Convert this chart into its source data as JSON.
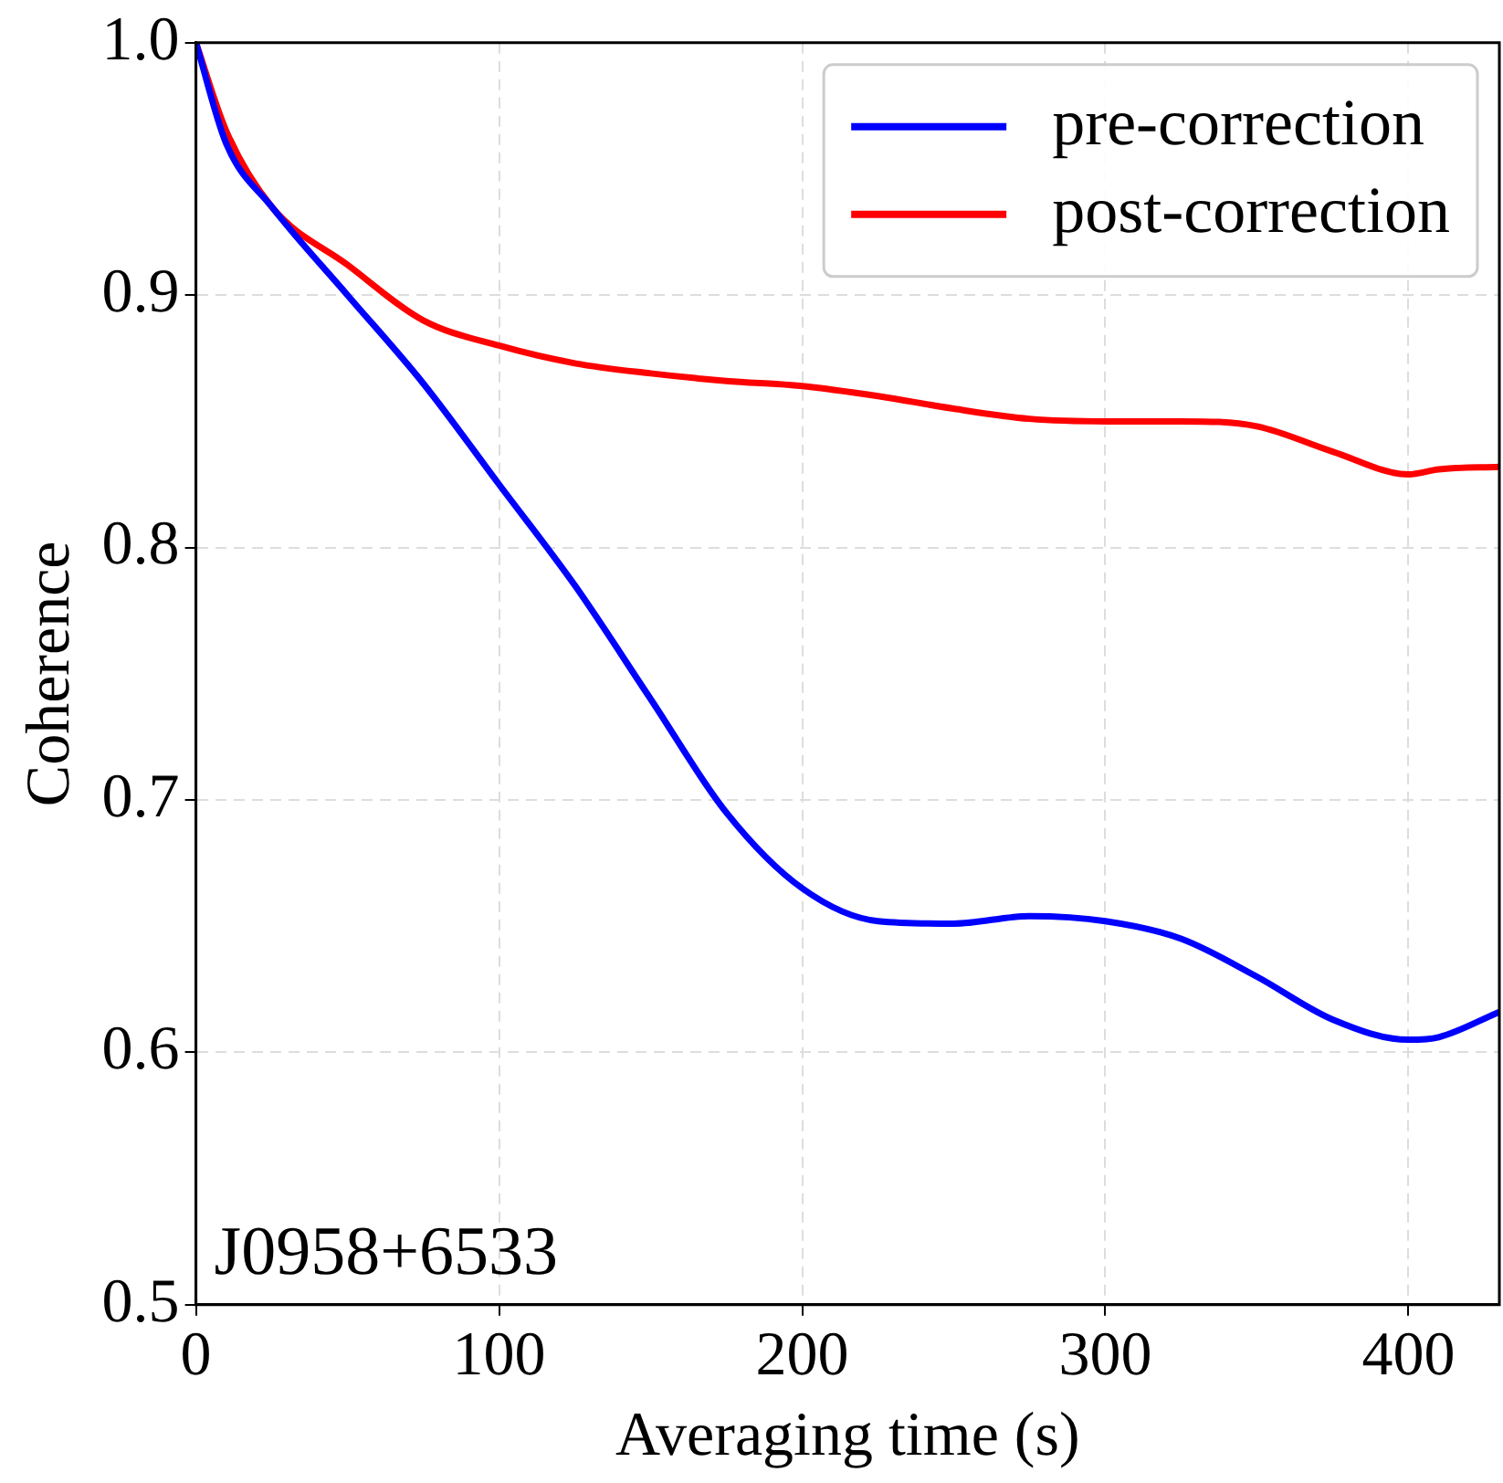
{
  "chart_data": {
    "type": "line",
    "xlabel": "Averaging time (s)",
    "ylabel": "Coherence",
    "x": [
      0,
      10,
      25,
      50,
      75,
      100,
      125,
      150,
      175,
      200,
      225,
      250,
      275,
      300,
      325,
      350,
      375,
      400,
      410,
      430
    ],
    "series": [
      {
        "name": "pre-correction",
        "color": "#0000ff",
        "values": [
          1.0,
          0.96,
          0.935,
          0.9,
          0.865,
          0.825,
          0.785,
          0.74,
          0.695,
          0.665,
          0.652,
          0.651,
          0.654,
          0.652,
          0.645,
          0.63,
          0.613,
          0.605,
          0.606,
          0.616
        ]
      },
      {
        "name": "post-correction",
        "color": "#ff0000",
        "values": [
          1.0,
          0.965,
          0.935,
          0.912,
          0.89,
          0.88,
          0.873,
          0.869,
          0.866,
          0.864,
          0.86,
          0.855,
          0.851,
          0.85,
          0.85,
          0.848,
          0.838,
          0.829,
          0.831,
          0.832
        ]
      }
    ],
    "xlim": [
      0,
      430
    ],
    "xticks": [
      0,
      100,
      200,
      300,
      400
    ],
    "ylim": [
      0.5,
      1.0
    ],
    "yticks": [
      0.5,
      0.6,
      0.7,
      0.8,
      0.9,
      {
        "value": 1.0,
        "label": "1.0"
      }
    ],
    "grid": true,
    "legend": "top right",
    "line_style": "solid",
    "marker": "none",
    "annotations": [
      "J0958+6533"
    ]
  }
}
